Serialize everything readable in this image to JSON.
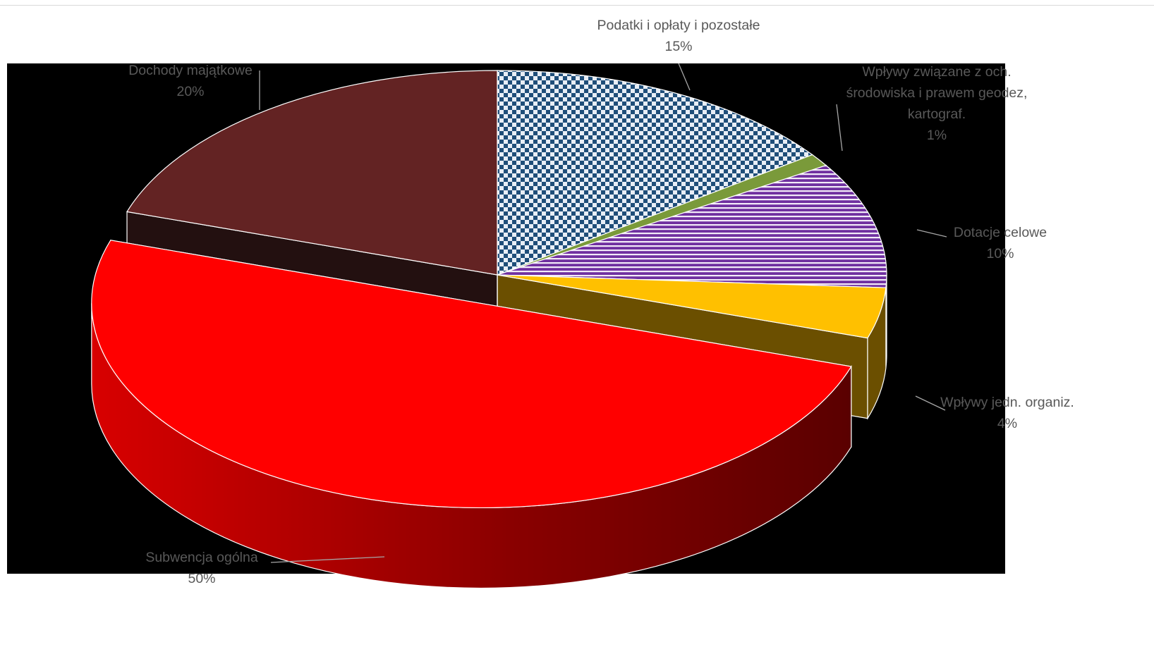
{
  "chart_data": {
    "type": "pie",
    "title": "",
    "categories": [
      "Podatki i opłaty i pozostałe",
      "Wpływy związane z och. środowiska i prawem geodez, kartograf.",
      "Dotacje celowe",
      "Wpływy jedn. organiz.",
      "Subwencja ogólna",
      "Dochody majątkowe"
    ],
    "values": [
      15,
      1,
      10,
      4,
      50,
      20
    ],
    "value_labels": [
      "15%",
      "1%",
      "10%",
      "4%",
      "50%",
      "20%"
    ],
    "label_lines": [
      [
        "Podatki i opłaty i pozostałe",
        "15%"
      ],
      [
        "Wpływy związane z och.",
        "środowiska i prawem geodez,",
        "kartograf.",
        "1%"
      ],
      [
        "Dotacje celowe",
        "10%"
      ],
      [
        "Wpływy jedn. organiz.",
        "4%"
      ],
      [
        "Subwencja ogólna",
        "50%"
      ],
      [
        "Dochody majątkowe",
        "20%"
      ]
    ],
    "colors": [
      "#1f4e79",
      "#7a9a3a",
      "#7030a0",
      "#ffc000",
      "#ff0000",
      "#632323"
    ],
    "side_colors": [
      "#132f4a",
      "#3e5020",
      "#3a1655",
      "#6b4f00",
      "#a00000",
      "#231010"
    ],
    "patterns": [
      "checker",
      "solid",
      "horizontal-stripes",
      "solid",
      "solid",
      "solid"
    ],
    "exploded": [
      "Subwencja ogólna"
    ],
    "view": "3d",
    "legend": "none",
    "background_color": "#000000"
  }
}
